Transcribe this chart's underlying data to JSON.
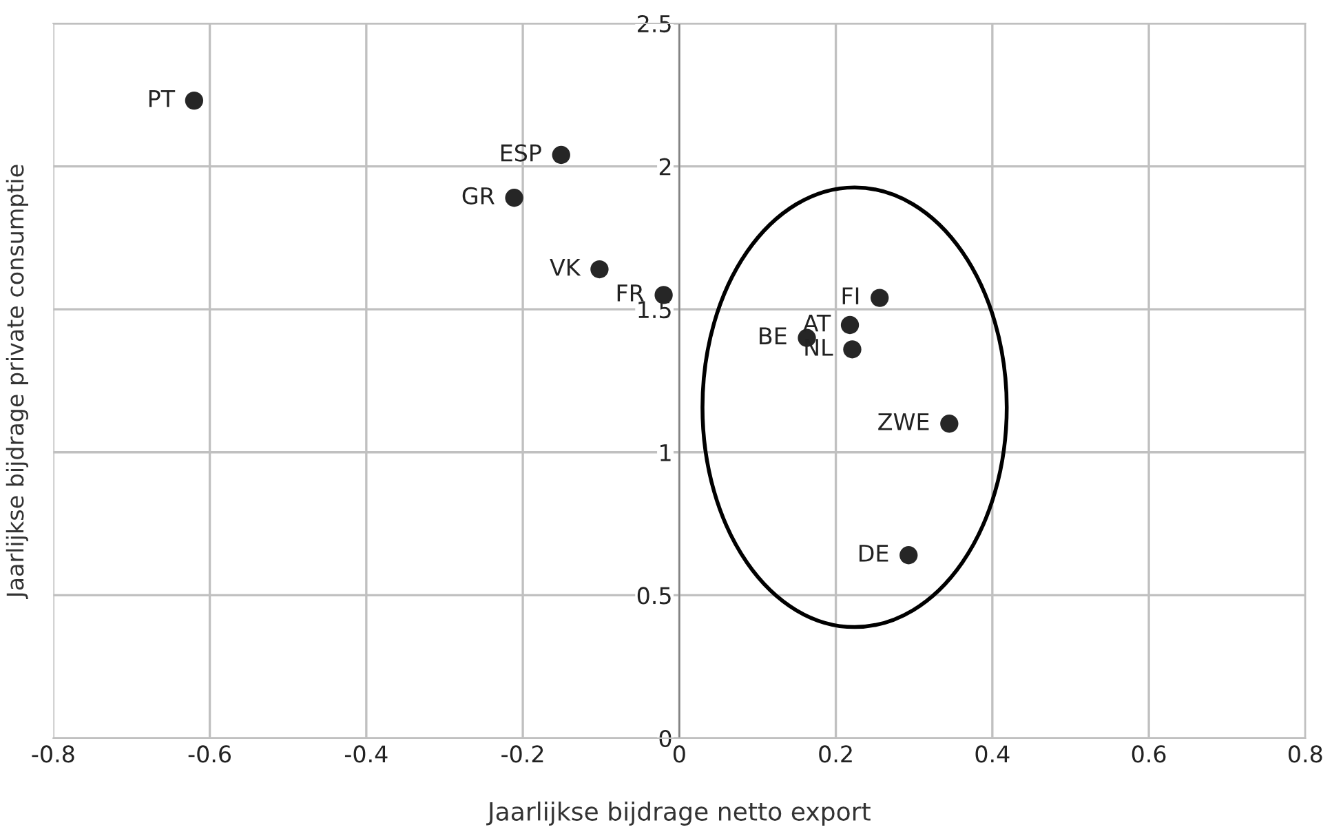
{
  "chart_data": {
    "type": "scatter",
    "xlabel": "Jaarlijkse bijdrage netto export",
    "ylabel": "Jaarlijkse bijdrage private consumptie",
    "x": [
      -0.62,
      -0.151,
      -0.211,
      -0.102,
      -0.02,
      0.256,
      0.218,
      0.163,
      0.221,
      0.345,
      0.293
    ],
    "series": [
      {
        "color": "#262626",
        "values": [
          2.23,
          2.04,
          1.89,
          1.64,
          1.55,
          1.54,
          1.445,
          1.4,
          1.36,
          1.1,
          0.64
        ]
      }
    ],
    "marker": "circle",
    "grid": true,
    "legend": false,
    "xlim": [
      -0.8,
      0.8
    ],
    "ylim": [
      0,
      2.5
    ],
    "xticks": [
      -0.8,
      -0.6,
      -0.4,
      -0.2,
      0,
      0.2,
      0.4,
      0.6,
      0.8
    ],
    "yticks": [
      0,
      0.5,
      1,
      1.5,
      2,
      2.5
    ],
    "annotations": [
      {
        "text": "PT",
        "x": -0.62,
        "y": 2.23
      },
      {
        "text": "ESP",
        "x": -0.151,
        "y": 2.04
      },
      {
        "text": "GR",
        "x": -0.211,
        "y": 1.89
      },
      {
        "text": "VK",
        "x": -0.102,
        "y": 1.64
      },
      {
        "text": "FR",
        "x": -0.02,
        "y": 1.55
      },
      {
        "text": "FI",
        "x": 0.256,
        "y": 1.54
      },
      {
        "text": "AT",
        "x": 0.218,
        "y": 1.445
      },
      {
        "text": "BE",
        "x": 0.163,
        "y": 1.4
      },
      {
        "text": "NL",
        "x": 0.221,
        "y": 1.36
      },
      {
        "text": "ZWE",
        "x": 0.345,
        "y": 1.1
      },
      {
        "text": "DE",
        "x": 0.293,
        "y": 0.64
      }
    ]
  }
}
